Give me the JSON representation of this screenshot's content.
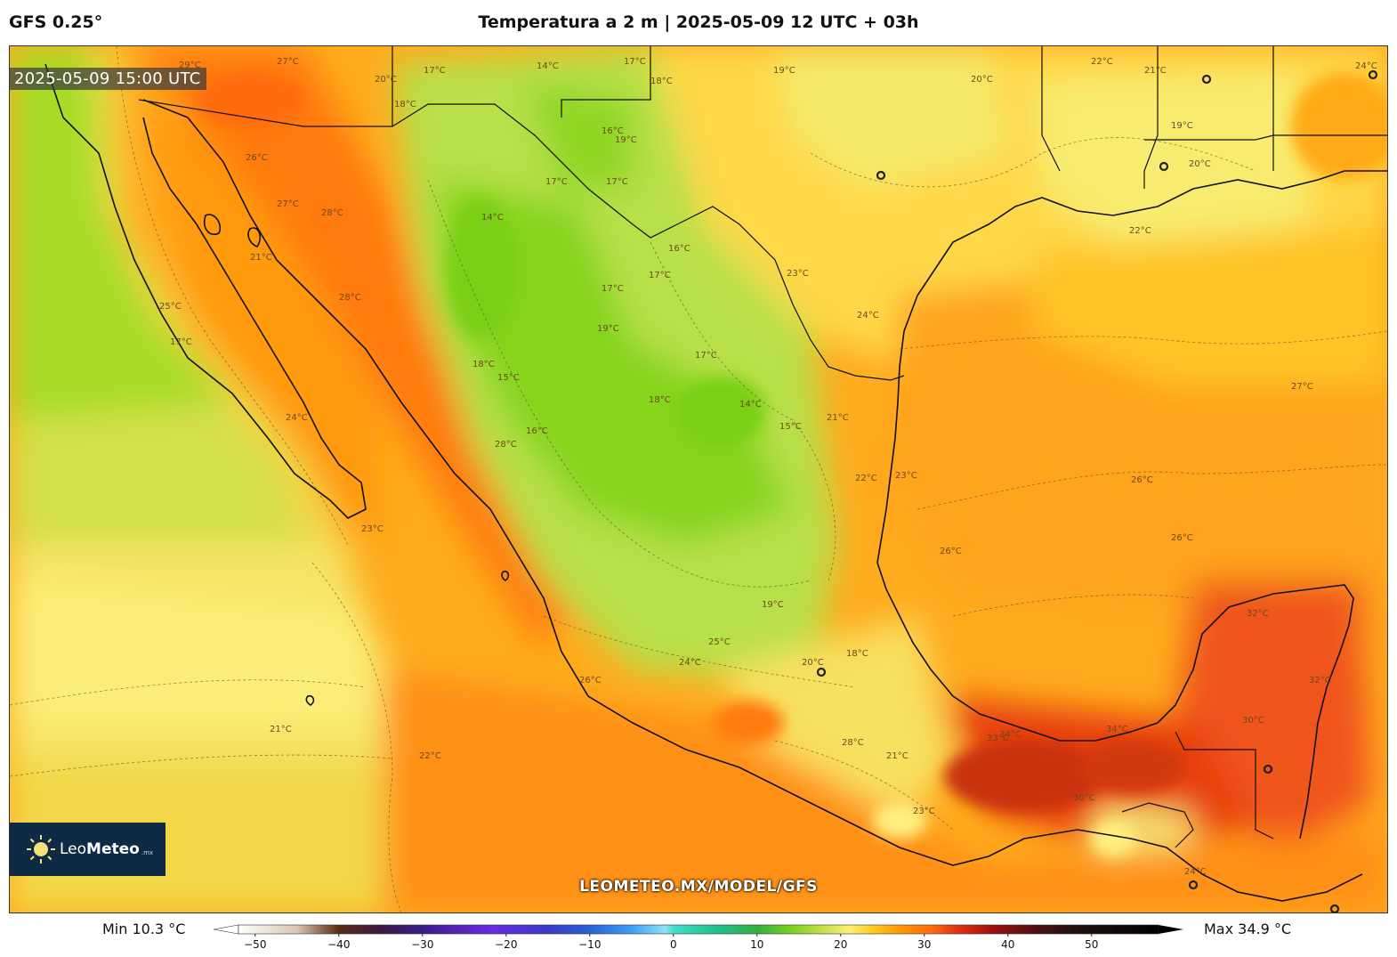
{
  "header": {
    "model": "GFS 0.25°",
    "title": "Temperatura a 2 m | 2025-05-09 12 UTC + 03h"
  },
  "map": {
    "valid_time": "2025-05-09 15:00 UTC",
    "watermark": "LEOMETEO.MX/MODEL/GFS",
    "contour_labels": [
      "29°C",
      "27°C",
      "17°C",
      "14°C",
      "17°C",
      "18°C",
      "19°C",
      "20°C",
      "18°C",
      "19°C",
      "16°C",
      "17°C",
      "17°C",
      "26°C",
      "27°C",
      "28°C",
      "23°C",
      "25°C",
      "17°C",
      "21°C",
      "28°C",
      "14°C",
      "15°C",
      "18°C",
      "16°C",
      "17°C",
      "19°C",
      "16°C",
      "17°C",
      "14°C",
      "15°C",
      "18°C",
      "17°C",
      "21°C",
      "22°C",
      "22°C",
      "24°C",
      "23°C",
      "19°C",
      "20°C",
      "22°C",
      "21°C",
      "24°C",
      "27°C",
      "26°C",
      "26°C",
      "23°C",
      "26°C",
      "28°C",
      "24°C",
      "25°C",
      "32°C",
      "32°C",
      "30°C",
      "33°C",
      "34°C",
      "34°C",
      "24°C",
      "21°C",
      "20°C",
      "18°C",
      "23°C",
      "28°C",
      "30°C",
      "26°C",
      "22°C",
      "21°C",
      "24°C",
      "19°C",
      "20°C"
    ],
    "cities": [
      "city-1",
      "city-2",
      "city-3",
      "city-4",
      "city-5",
      "city-6",
      "city-7",
      "city-8"
    ]
  },
  "logo": {
    "brand_light": "Leo",
    "brand_bold": "Meteo",
    "suffix": ".mx"
  },
  "colorbar": {
    "min_label": "Min 10.3 °C",
    "max_label": "Max 34.9 °C",
    "ticks": [
      "−50",
      "−40",
      "−30",
      "−20",
      "−10",
      "0",
      "10",
      "20",
      "30",
      "40",
      "50"
    ],
    "tick_values": [
      -50,
      -40,
      -30,
      -20,
      -10,
      0,
      10,
      20,
      30,
      40,
      50
    ],
    "range": [
      -52,
      58
    ],
    "colors": [
      {
        "t": -52,
        "c": "#ffffff"
      },
      {
        "t": -45,
        "c": "#d8c8b0"
      },
      {
        "t": -40,
        "c": "#5a2a14"
      },
      {
        "t": -35,
        "c": "#3a1a40"
      },
      {
        "t": -30,
        "c": "#3a1a8a"
      },
      {
        "t": -22,
        "c": "#6a2ae0"
      },
      {
        "t": -15,
        "c": "#3a3ac8"
      },
      {
        "t": -10,
        "c": "#2a60d8"
      },
      {
        "t": -5,
        "c": "#3aa0f0"
      },
      {
        "t": -1,
        "c": "#90e0f8"
      },
      {
        "t": 0,
        "c": "#40e0c8"
      },
      {
        "t": 5,
        "c": "#20c090"
      },
      {
        "t": 10,
        "c": "#30b040"
      },
      {
        "t": 14,
        "c": "#78d020"
      },
      {
        "t": 18,
        "c": "#c8e050"
      },
      {
        "t": 21,
        "c": "#fff070"
      },
      {
        "t": 24,
        "c": "#ffc820"
      },
      {
        "t": 27,
        "c": "#ff9a00"
      },
      {
        "t": 31,
        "c": "#ff6a10"
      },
      {
        "t": 34,
        "c": "#e03010"
      },
      {
        "t": 38,
        "c": "#a01010"
      },
      {
        "t": 43,
        "c": "#501010"
      },
      {
        "t": 48,
        "c": "#201010"
      },
      {
        "t": 58,
        "c": "#000000"
      }
    ]
  },
  "palette": {
    "cold_green": "#8fd61a",
    "cool_green": "#b8e046",
    "pale_yellow": "#f5ec70",
    "yellow": "#ffd23c",
    "orange": "#ff9f16",
    "hot_orange": "#ff6a10",
    "hot_red": "#e8400c",
    "very_hot": "#c8300a"
  }
}
